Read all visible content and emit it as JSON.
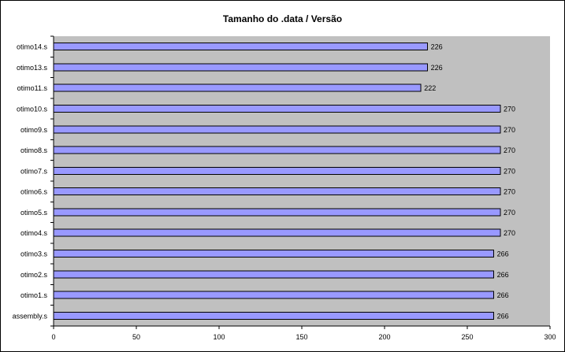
{
  "chart_data": {
    "type": "bar",
    "orientation": "horizontal",
    "title": "Tamanho do .data / Versão",
    "xlabel": "",
    "ylabel": "",
    "categories": [
      "assembly.s",
      "otimo1.s",
      "otimo2.s",
      "otimo3.s",
      "otimo4.s",
      "otimo5.s",
      "otimo6.s",
      "otimo7.s",
      "otimo8.s",
      "otimo9.s",
      "otimo10.s",
      "otimo11.s",
      "otimo13.s",
      "otimo14.s"
    ],
    "values": [
      266,
      266,
      266,
      266,
      270,
      270,
      270,
      270,
      270,
      270,
      270,
      222,
      226,
      226
    ],
    "value_labels": [
      "266",
      "266",
      "266",
      "266",
      "270",
      "270",
      "270",
      "270",
      "270",
      "270",
      "270",
      "222",
      "226",
      "226"
    ],
    "xlim": [
      0,
      300
    ],
    "x_ticks": [
      "0",
      "50",
      "100",
      "150",
      "200",
      "250",
      "300"
    ],
    "grid": false,
    "legend": "none",
    "colors": {
      "bar_fill": "#9999ff",
      "bar_stroke": "#000000",
      "plot_background": "#c0c0c0",
      "axis": "#000000"
    }
  }
}
